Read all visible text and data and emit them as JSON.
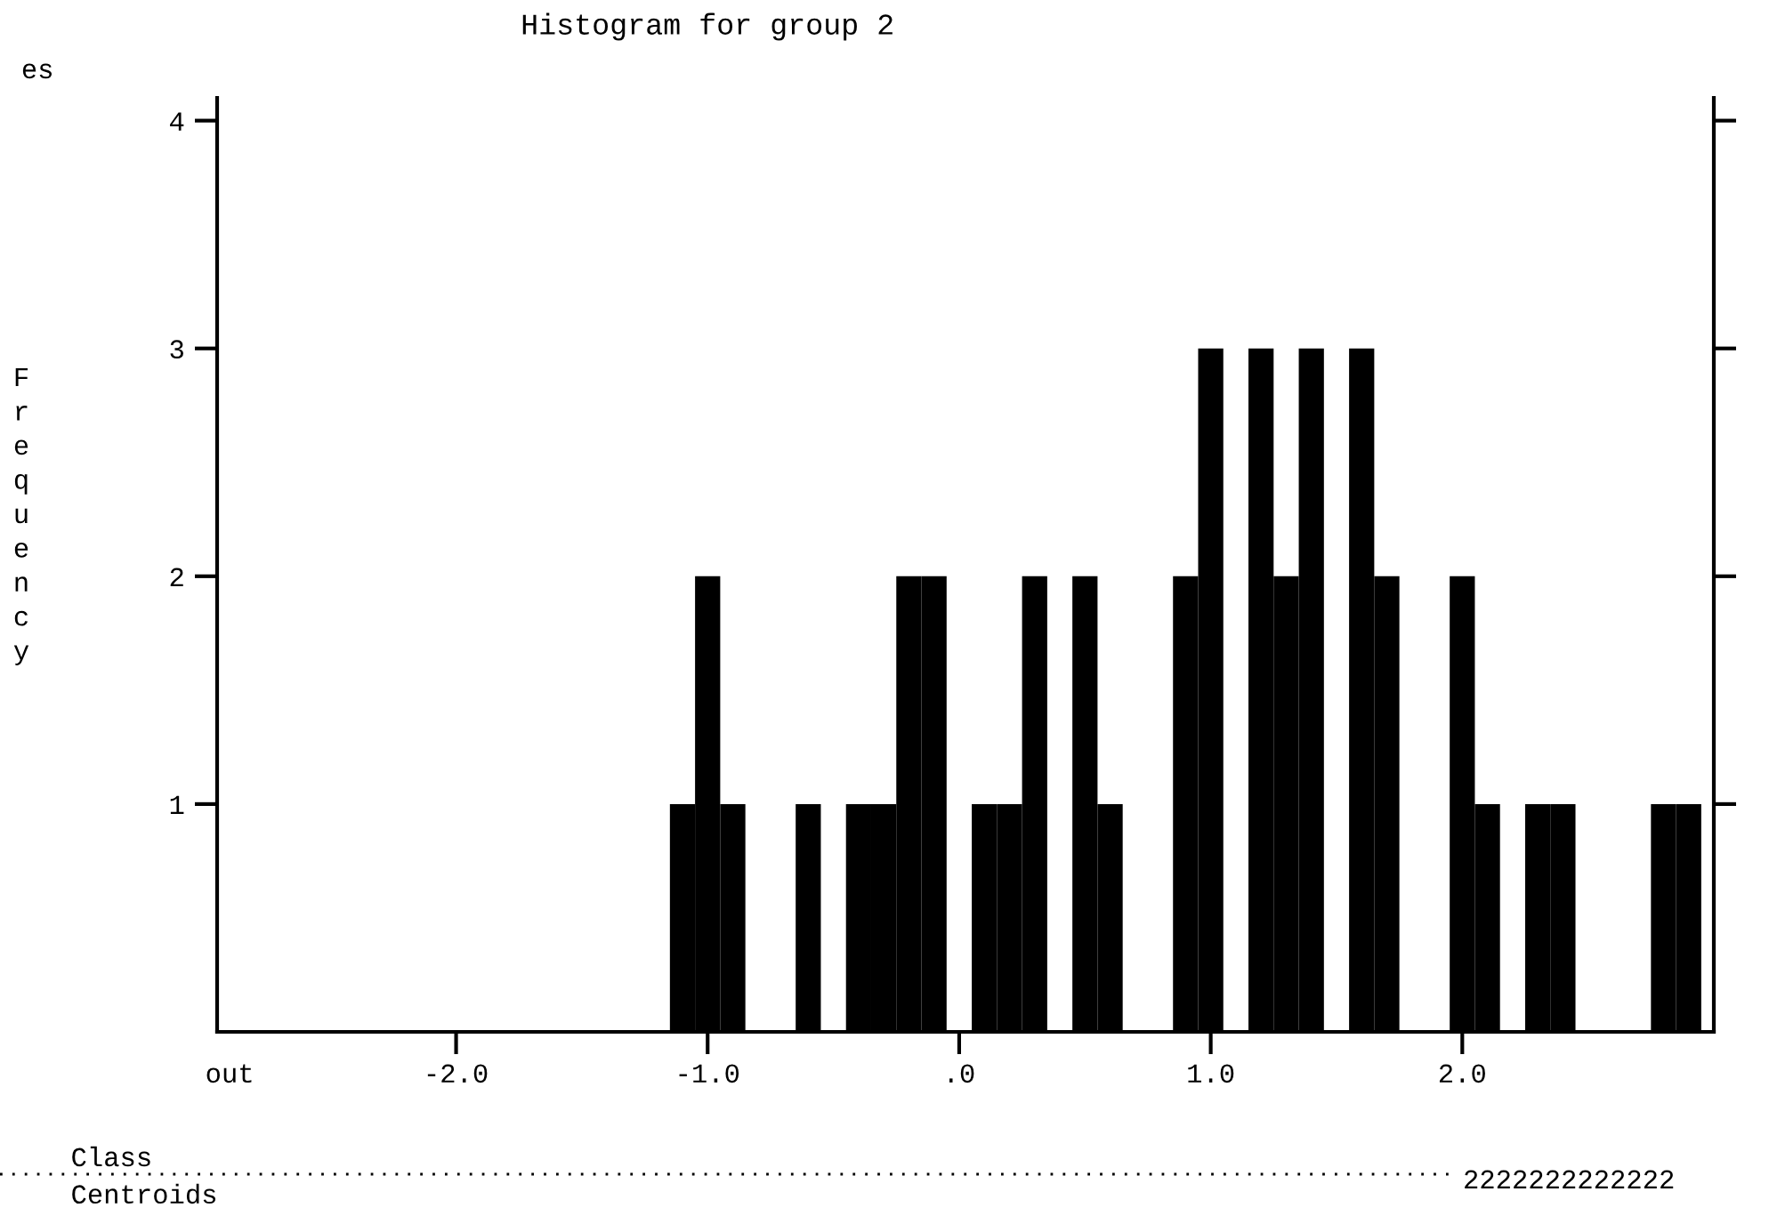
{
  "chart_data": {
    "type": "histogram",
    "title": "Histogram for group 2",
    "ylabel": "Frequency",
    "bins": [
      -1.15,
      -1.05,
      -0.95,
      -0.85,
      -0.75,
      -0.65,
      -0.55,
      -0.45,
      -0.35,
      -0.25,
      -0.15,
      -0.05,
      0.05,
      0.15,
      0.25,
      0.35,
      0.45,
      0.55,
      0.65,
      0.75,
      0.85,
      0.95,
      1.05,
      1.15,
      1.25,
      1.35,
      1.45,
      1.55,
      1.65,
      1.75,
      1.85,
      1.95,
      2.05,
      2.15,
      2.25,
      2.35,
      2.45,
      2.55,
      2.65,
      2.75,
      2.85,
      2.95
    ],
    "values": [
      1,
      2,
      1,
      0,
      0,
      1,
      0,
      1,
      1,
      2,
      2,
      0,
      1,
      1,
      2,
      0,
      2,
      1,
      0,
      0,
      2,
      3,
      0,
      3,
      2,
      3,
      0,
      3,
      2,
      0,
      0,
      2,
      1,
      0,
      1,
      1,
      0,
      0,
      0,
      1,
      1
    ],
    "color": "#000000",
    "xlim": [
      -2.95,
      3.0
    ],
    "xticks": [
      {
        "value": -2.9,
        "label": "out"
      },
      {
        "value": -2.0,
        "label": "-2.0"
      },
      {
        "value": -1.0,
        "label": "-1.0"
      },
      {
        "value": 0,
        "label": ".0"
      },
      {
        "value": 1.0,
        "label": "1.0"
      },
      {
        "value": 2.0,
        "label": "2.0"
      }
    ],
    "ylim": [
      0,
      4.1
    ],
    "yticks": [
      1,
      2,
      3,
      4
    ],
    "grid": false,
    "annotations": [
      "es",
      "Class Centroids",
      "2222222222222"
    ]
  }
}
